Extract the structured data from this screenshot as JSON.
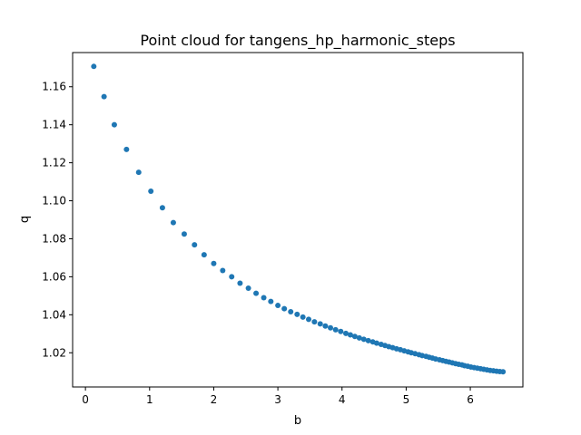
{
  "chart_data": {
    "type": "scatter",
    "title": "Point cloud for tangens_hp_harmonic_steps",
    "xlabel": "b",
    "ylabel": "q",
    "xlim": [
      -0.2,
      6.82
    ],
    "ylim": [
      1.002,
      1.178
    ],
    "xticks": [
      0,
      1,
      2,
      3,
      4,
      5,
      6
    ],
    "yticks": [
      1.02,
      1.04,
      1.06,
      1.08,
      1.1,
      1.12,
      1.14,
      1.16
    ],
    "ytick_labels": [
      "1.02",
      "1.04",
      "1.06",
      "1.08",
      "1.10",
      "1.12",
      "1.14",
      "1.16"
    ],
    "grid": false,
    "marker_color": "#1f77b4",
    "series": [
      {
        "x": [
          0.13,
          0.29,
          0.45,
          0.64,
          0.83,
          1.02,
          1.2,
          1.37,
          1.54,
          1.7,
          1.85,
          2.0,
          2.14,
          2.28,
          2.41,
          2.54,
          2.66,
          2.78,
          2.89,
          3.0,
          3.1,
          3.2,
          3.3,
          3.39,
          3.48,
          3.57,
          3.66,
          3.74,
          3.82,
          3.9,
          3.98,
          4.06,
          4.13,
          4.2,
          4.27,
          4.34,
          4.41,
          4.48,
          4.54,
          4.61,
          4.67,
          4.73,
          4.79,
          4.85,
          4.91,
          4.97,
          5.03,
          5.08,
          5.14,
          5.2,
          5.25,
          5.31,
          5.36,
          5.41,
          5.46,
          5.52,
          5.57,
          5.62,
          5.67,
          5.72,
          5.77,
          5.82,
          5.87,
          5.91,
          5.96,
          6.01,
          6.06,
          6.11,
          6.16,
          6.21,
          6.26,
          6.31,
          6.36,
          6.41,
          6.46,
          6.51
        ],
        "y": [
          1.1707,
          1.1548,
          1.14,
          1.127,
          1.115,
          1.105,
          1.0963,
          1.0885,
          1.0825,
          1.0768,
          1.0716,
          1.067,
          1.0633,
          1.06,
          1.0566,
          1.054,
          1.0513,
          1.049,
          1.047,
          1.0449,
          1.0432,
          1.0416,
          1.0402,
          1.0388,
          1.0376,
          1.0363,
          1.0352,
          1.0341,
          1.0331,
          1.0321,
          1.0312,
          1.0302,
          1.0294,
          1.0286,
          1.0278,
          1.0271,
          1.0264,
          1.0257,
          1.0251,
          1.0244,
          1.0238,
          1.0232,
          1.0227,
          1.0221,
          1.0216,
          1.021,
          1.0205,
          1.02,
          1.0195,
          1.019,
          1.0185,
          1.0181,
          1.0176,
          1.0172,
          1.0167,
          1.0163,
          1.0159,
          1.0155,
          1.0151,
          1.0147,
          1.0143,
          1.0139,
          1.0136,
          1.0132,
          1.0129,
          1.0125,
          1.0122,
          1.0119,
          1.0116,
          1.0113,
          1.011,
          1.0107,
          1.0105,
          1.0103,
          1.0101,
          1.01
        ]
      }
    ]
  }
}
